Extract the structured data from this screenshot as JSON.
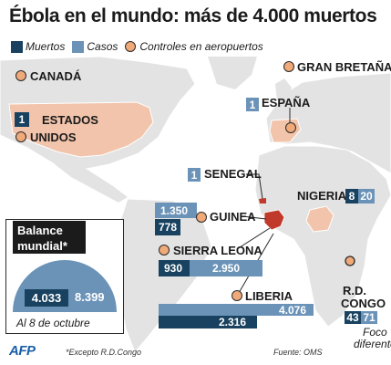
{
  "title": "Ébola en el mundo: más de 4.000 muertos",
  "legend": {
    "deaths": "Muertos",
    "cases": "Casos",
    "airport_controls": "Controles en aeropuertos"
  },
  "colors": {
    "deaths": "#18425f",
    "cases": "#6b93b8",
    "controls_marker": "#f0a978",
    "affected_land": "#f2c4ab",
    "outbreak": "#c0392b",
    "land": "#e3e3e3",
    "water": "#ffffff"
  },
  "countries": {
    "canada": {
      "name": "CANADÁ"
    },
    "usa": {
      "name_line1": "ESTADOS",
      "name_line2": "UNIDOS",
      "deaths": "1"
    },
    "uk": {
      "name": "GRAN BRETAÑA"
    },
    "spain": {
      "name": "ESPAÑA",
      "deaths": "1"
    },
    "senegal": {
      "name": "SENEGAL",
      "cases": "1"
    },
    "nigeria": {
      "name": "NIGERIA",
      "deaths": "8",
      "cases": "20"
    },
    "guinea": {
      "name": "GUINEA",
      "cases": "1.350",
      "deaths": "778"
    },
    "sierra_leone": {
      "name": "SIERRA LEONA",
      "deaths": "930",
      "cases": "2.950"
    },
    "liberia": {
      "name": "LIBERIA",
      "cases": "4.076",
      "deaths": "2.316"
    },
    "rd_congo": {
      "name_line1": "R.D.",
      "name_line2": "CONGO",
      "deaths": "43",
      "cases": "71",
      "note_line1": "Foco",
      "note_line2": "diferente"
    }
  },
  "balance": {
    "title_line1": "Balance",
    "title_line2": "mundial*",
    "deaths": "4.033",
    "cases": "8.399",
    "date": "Al 8 de octubre"
  },
  "footnote": "*Excepto R.D.Congo",
  "source": "Fuente: OMS",
  "credit": "AFP"
}
